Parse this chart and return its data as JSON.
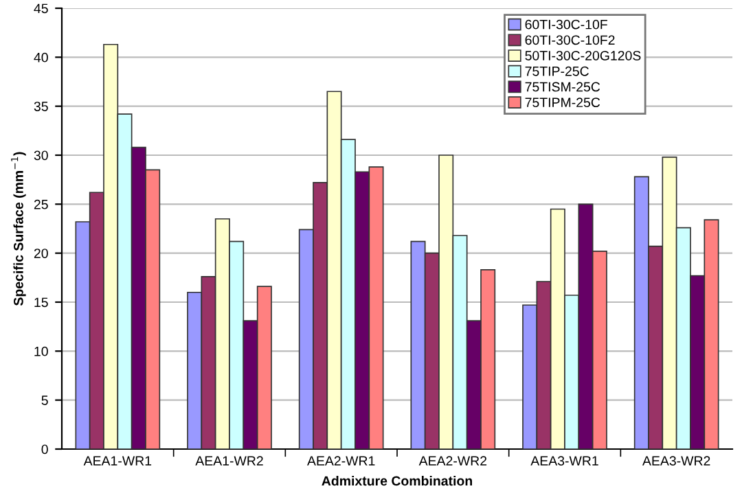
{
  "chart_data": {
    "type": "bar",
    "xlabel": "Admixture Combination",
    "ylabel": "Specific Surface (mm$^{−1}$)",
    "categories": [
      "AEA1-WR1",
      "AEA1-WR2",
      "AEA2-WR1",
      "AEA2-WR2",
      "AEA3-WR1",
      "AEA3-WR2"
    ],
    "series": [
      {
        "name": "60TI-30C-10F",
        "color": "#9999ff",
        "values": [
          23.2,
          16.0,
          22.4,
          21.2,
          14.7,
          27.8
        ]
      },
      {
        "name": "60TI-30C-10F2",
        "color": "#993366",
        "values": [
          26.2,
          17.6,
          27.2,
          20.0,
          17.1,
          20.7
        ]
      },
      {
        "name": "50TI-30C-20G120S",
        "color": "#ffffcc",
        "values": [
          41.3,
          23.5,
          36.5,
          30.0,
          24.5,
          29.8
        ]
      },
      {
        "name": "75TIP-25C",
        "color": "#ccffff",
        "values": [
          34.2,
          21.2,
          31.6,
          21.8,
          15.7,
          22.6
        ]
      },
      {
        "name": "75TISM-25C",
        "color": "#660066",
        "values": [
          30.8,
          13.1,
          28.3,
          13.1,
          25.0,
          17.7
        ]
      },
      {
        "name": "75TIPM-25C",
        "color": "#ff8080",
        "values": [
          28.5,
          16.6,
          28.8,
          18.3,
          20.2,
          23.4
        ]
      }
    ],
    "ylim": [
      0,
      45
    ],
    "yticks": [
      0,
      5,
      10,
      15,
      20,
      25,
      30,
      35,
      40,
      45
    ],
    "grid": "y",
    "legend": "top right"
  }
}
